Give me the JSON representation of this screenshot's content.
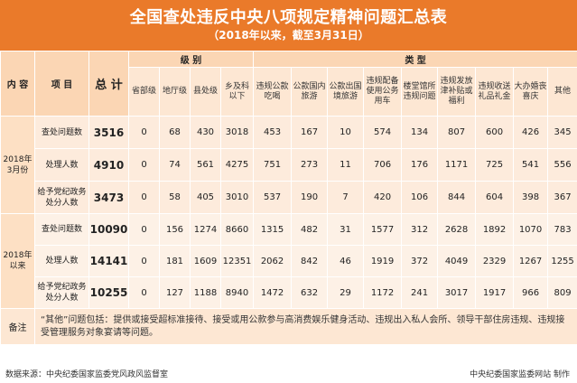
{
  "title": "全国查处违反中央八项规定精神问题汇总表",
  "subtitle": "（2018年以来，截至3月31日）",
  "headers": {
    "content": "内 容",
    "item": "项 目",
    "total": "总 计",
    "level_group": "级 别",
    "type_group": "类 型",
    "levels": [
      "省部级",
      "地厅级",
      "县处级",
      "乡及科以下"
    ],
    "types": [
      "违规公款吃喝",
      "公款国内旅游",
      "公款出国境旅游",
      "违规配备使用公务用车",
      "楼堂馆所违规问题",
      "违规发放津补贴或福利",
      "违规收送礼品礼金",
      "大办婚丧喜庆",
      "其他"
    ]
  },
  "groups": [
    {
      "period": "2018年3月份",
      "rows": [
        {
          "item": "查处问题数",
          "total": "3516",
          "levels": [
            "0",
            "68",
            "430",
            "3018"
          ],
          "types": [
            "453",
            "167",
            "10",
            "574",
            "134",
            "807",
            "600",
            "426",
            "345"
          ]
        },
        {
          "item": "处理人数",
          "total": "4910",
          "levels": [
            "0",
            "74",
            "561",
            "4275"
          ],
          "types": [
            "751",
            "273",
            "11",
            "706",
            "176",
            "1171",
            "725",
            "541",
            "556"
          ]
        },
        {
          "item": "给予党纪政务处分人数",
          "total": "3473",
          "levels": [
            "0",
            "58",
            "405",
            "3010"
          ],
          "types": [
            "537",
            "190",
            "7",
            "420",
            "106",
            "844",
            "604",
            "398",
            "367"
          ]
        }
      ]
    },
    {
      "period": "2018年以来",
      "rows": [
        {
          "item": "查处问题数",
          "total": "10090",
          "levels": [
            "0",
            "156",
            "1274",
            "8660"
          ],
          "types": [
            "1315",
            "482",
            "31",
            "1577",
            "312",
            "2628",
            "1892",
            "1070",
            "783"
          ]
        },
        {
          "item": "处理人数",
          "total": "14141",
          "levels": [
            "0",
            "181",
            "1609",
            "12351"
          ],
          "types": [
            "2062",
            "842",
            "46",
            "1919",
            "372",
            "4049",
            "2329",
            "1267",
            "1255"
          ]
        },
        {
          "item": "给予党纪政务处分人数",
          "total": "10255",
          "levels": [
            "0",
            "127",
            "1188",
            "8940"
          ],
          "types": [
            "1472",
            "632",
            "29",
            "1172",
            "241",
            "3017",
            "1917",
            "966",
            "809"
          ]
        }
      ]
    }
  ],
  "note": {
    "label": "备注",
    "text": "“其他”问题包括：提供或接受超标准接待、接受或用公款参与高消费娱乐健身活动、违规出入私人会所、领导干部住房违规、违规接受管理服务对象宴请等问题。"
  },
  "footer": {
    "source": "数据来源：中央纪委国家监委党风政风监督室",
    "producer": "中央纪委国家监委网站  制作"
  },
  "colors": {
    "header_band": "#ea7a2a",
    "header_cell": "#fbd6b4",
    "body_cell": "#fdebdc"
  }
}
